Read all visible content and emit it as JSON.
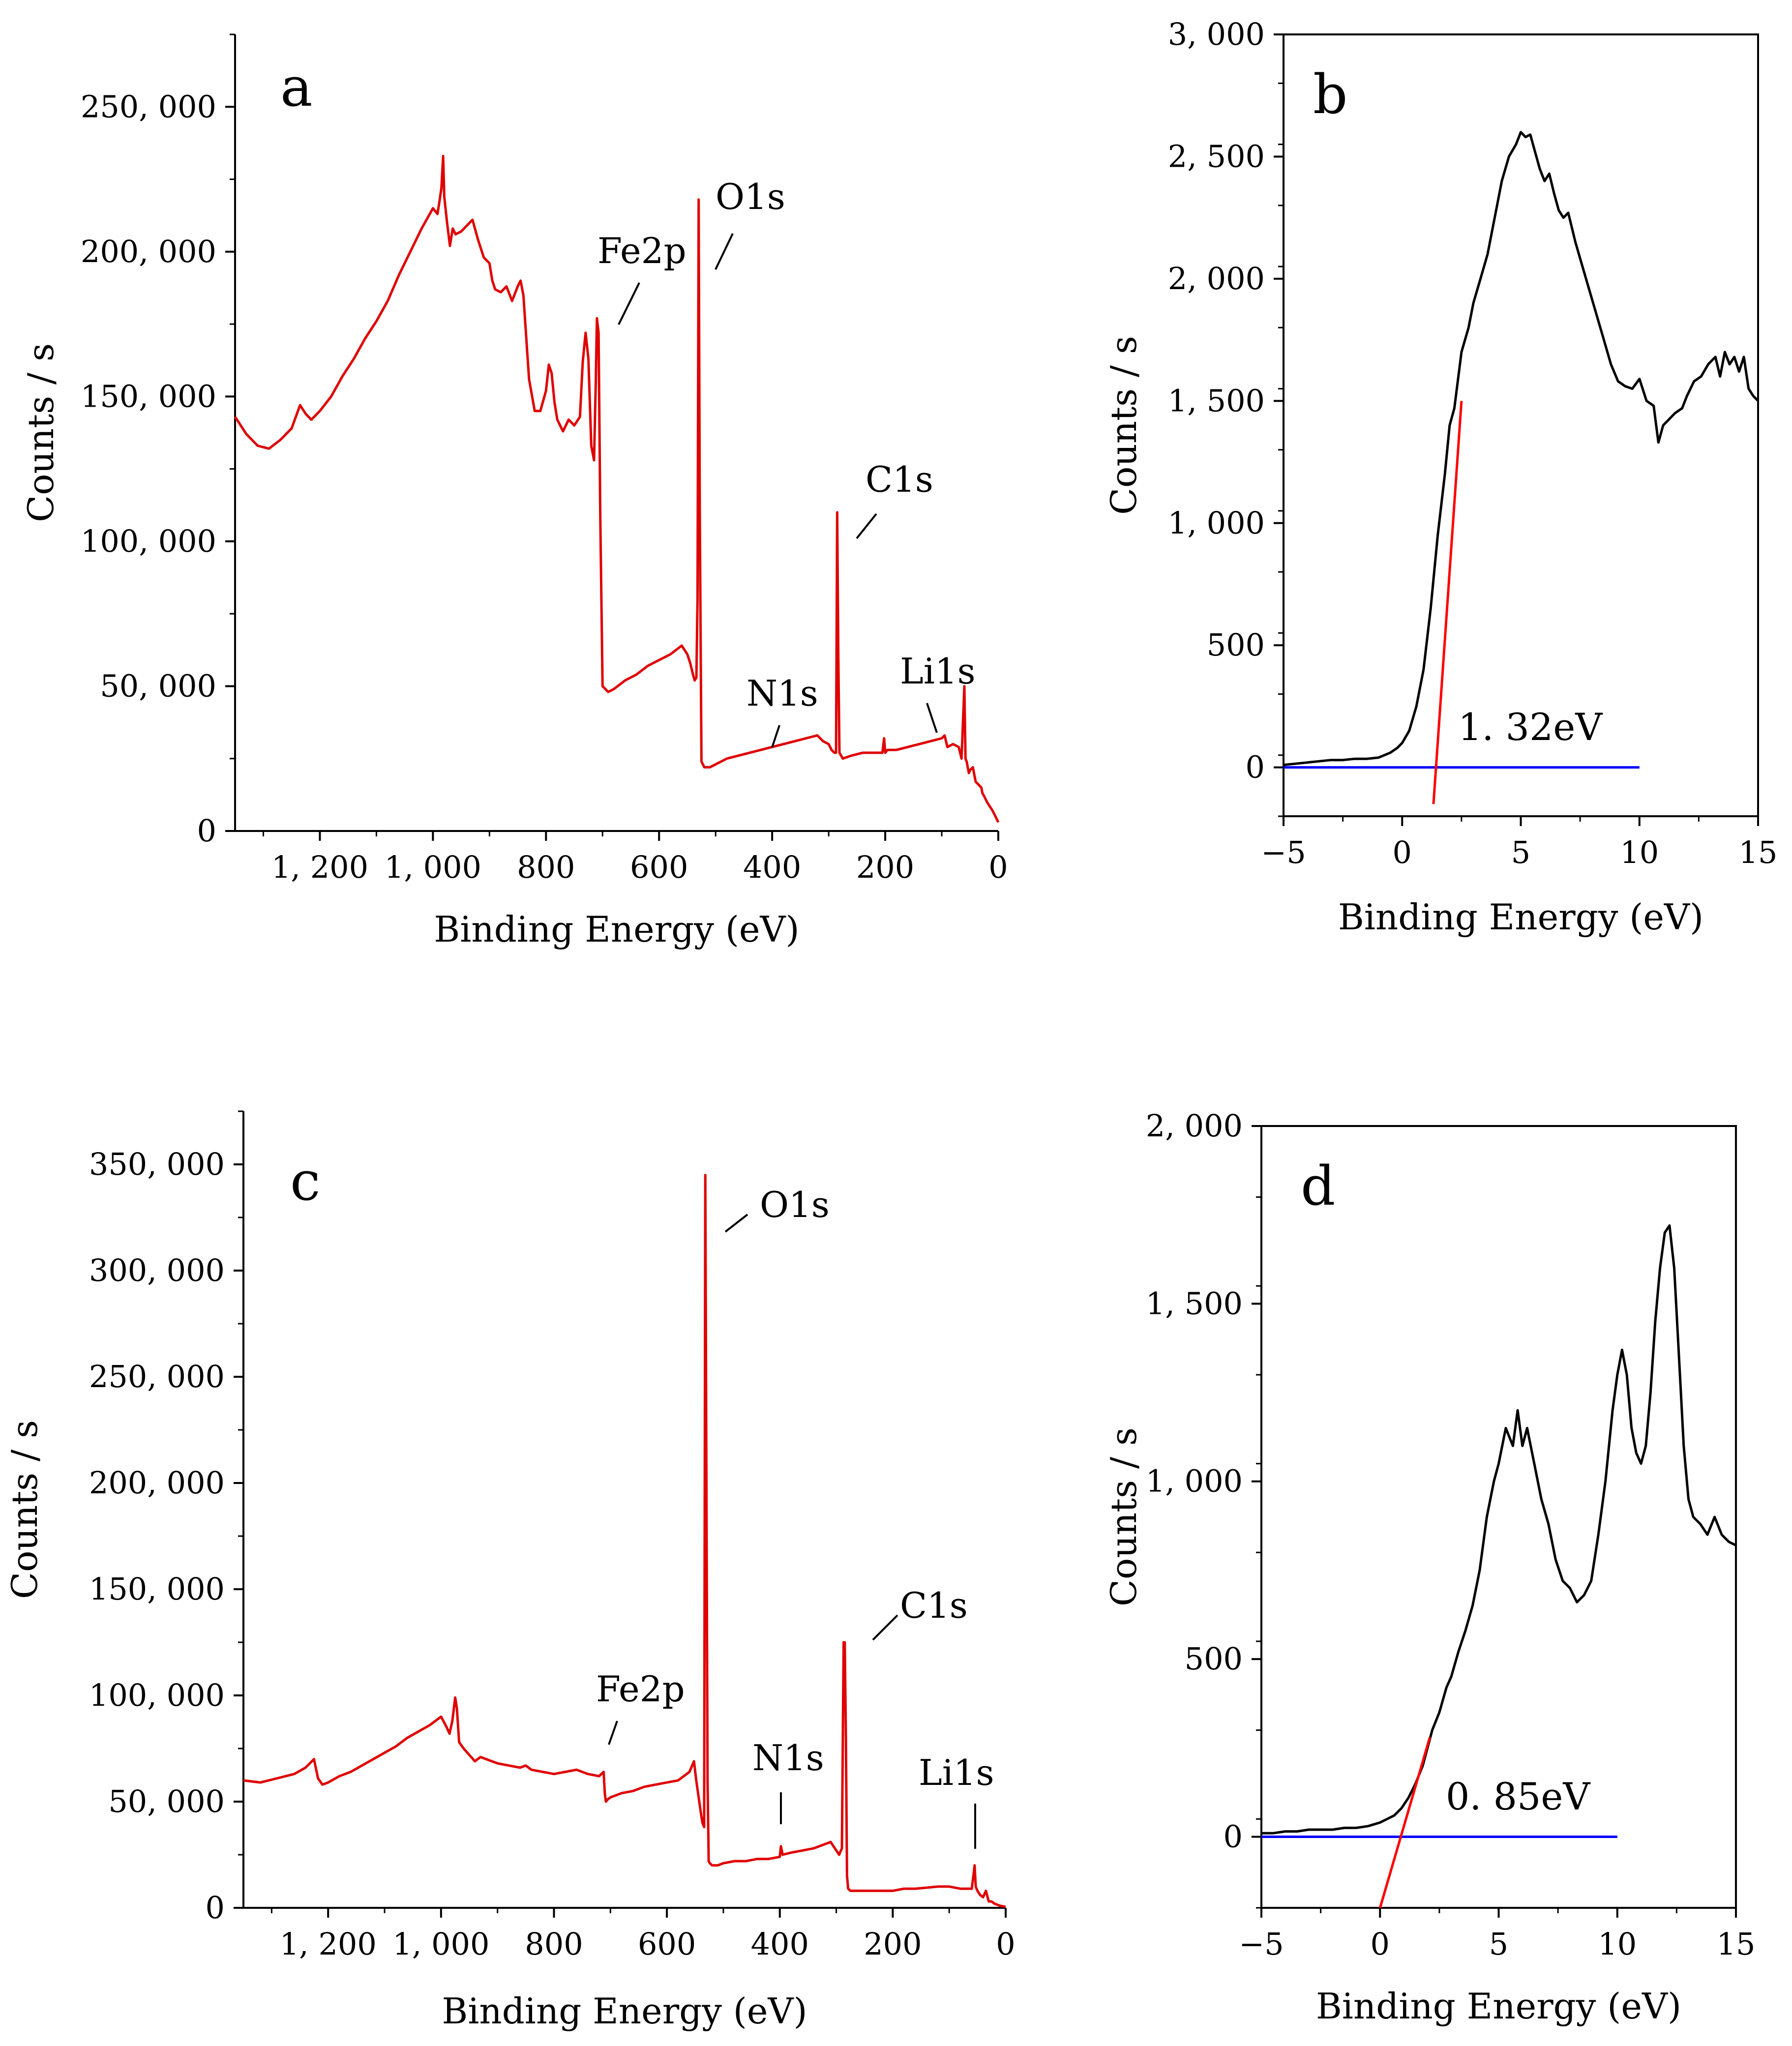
{
  "figure": {
    "panels": [
      "a",
      "b",
      "c",
      "d"
    ]
  },
  "chart_data": [
    {
      "id": "a",
      "type": "line",
      "panel_letter": "a",
      "xlabel": "Binding Energy (eV)",
      "ylabel": "Counts / s",
      "xlim": [
        1350,
        0
      ],
      "ylim": [
        0,
        275000
      ],
      "x_ticks": [
        1200,
        1000,
        800,
        600,
        400,
        200,
        0
      ],
      "x_tick_labels": [
        "1, 200",
        "1, 000",
        "800",
        "600",
        "400",
        "200",
        "0"
      ],
      "y_ticks": [
        0,
        50000,
        100000,
        150000,
        200000,
        250000
      ],
      "y_tick_labels": [
        "0",
        "50, 000",
        "100, 000",
        "150, 000",
        "200, 000",
        "250, 000"
      ],
      "series_color": "#e00000",
      "series": [
        {
          "name": "survey",
          "x": [
            1350,
            1330,
            1310,
            1290,
            1270,
            1250,
            1235,
            1225,
            1215,
            1200,
            1180,
            1160,
            1140,
            1120,
            1100,
            1080,
            1060,
            1040,
            1020,
            1000,
            992,
            988,
            985,
            982,
            980,
            975,
            970,
            965,
            960,
            950,
            940,
            930,
            920,
            910,
            900,
            895,
            890,
            880,
            870,
            860,
            850,
            845,
            840,
            830,
            820,
            810,
            800,
            795,
            790,
            785,
            780,
            770,
            760,
            750,
            740,
            735,
            730,
            725,
            722,
            720,
            715,
            712,
            710,
            707,
            704,
            700,
            690,
            680,
            660,
            640,
            620,
            600,
            580,
            560,
            550,
            545,
            540,
            537,
            534,
            532,
            530,
            528,
            525,
            520,
            510,
            500,
            480,
            460,
            440,
            420,
            400,
            380,
            360,
            340,
            320,
            310,
            300,
            295,
            290,
            287,
            285,
            283,
            281,
            278,
            275,
            260,
            240,
            220,
            205,
            202,
            200,
            196,
            180,
            160,
            140,
            120,
            100,
            95,
            90,
            80,
            70,
            65,
            60,
            58,
            56,
            55,
            54,
            52,
            50,
            45,
            40,
            35,
            30,
            28,
            25,
            20,
            10,
            5,
            0
          ],
          "y": [
            143000,
            137000,
            133000,
            132000,
            135000,
            139000,
            147000,
            144000,
            142000,
            145000,
            150000,
            157000,
            163000,
            170000,
            176000,
            183000,
            192000,
            200000,
            208000,
            215000,
            213000,
            218000,
            222000,
            233000,
            219000,
            210000,
            202000,
            208000,
            206000,
            207000,
            209000,
            211000,
            204000,
            198000,
            196000,
            190000,
            187000,
            186000,
            188000,
            183000,
            188000,
            190000,
            185000,
            156000,
            145000,
            145000,
            152000,
            161000,
            158000,
            148000,
            142000,
            138000,
            142000,
            140000,
            143000,
            162000,
            172000,
            163000,
            145000,
            133000,
            128000,
            155000,
            177000,
            172000,
            108000,
            50000,
            48000,
            49000,
            52000,
            54000,
            57000,
            59000,
            61000,
            64000,
            61000,
            58000,
            54000,
            52000,
            53000,
            80000,
            218000,
            110000,
            24000,
            22000,
            22000,
            23000,
            25000,
            26000,
            27000,
            28000,
            29000,
            30000,
            31000,
            32000,
            33000,
            31000,
            30000,
            28000,
            27000,
            27000,
            110000,
            60000,
            27000,
            26000,
            25000,
            26000,
            27000,
            27000,
            27000,
            32000,
            27000,
            28000,
            28000,
            29000,
            30000,
            31000,
            32000,
            33000,
            29000,
            30000,
            29000,
            25000,
            50000,
            25000,
            24000,
            23000,
            22000,
            20000,
            21000,
            22000,
            17000,
            16000,
            15000,
            13000,
            12000,
            10000,
            7000,
            5000,
            3000
          ],
          "annotations": [
            {
              "text": "Fe2p",
              "x": 720,
              "y": 195000
            },
            {
              "text": "O1s",
              "x": 500,
              "y": 206000
            },
            {
              "text": "C1s",
              "x": 195,
              "y": 110000
            },
            {
              "text": "N1s",
              "x": 380,
              "y": 42000
            },
            {
              "text": "Li1s",
              "x": 40,
              "y": 52000
            }
          ]
        }
      ]
    },
    {
      "id": "b",
      "type": "line",
      "panel_letter": "b",
      "xlabel": "Binding Energy (eV)",
      "ylabel": "Counts / s",
      "xlim": [
        -5,
        15
      ],
      "ylim": [
        -200,
        3000
      ],
      "x_ticks": [
        -5,
        0,
        5,
        10,
        15
      ],
      "x_tick_labels": [
        "−5",
        "0",
        "5",
        "10",
        "15"
      ],
      "y_ticks": [
        0,
        500,
        1000,
        1500,
        2000,
        2500,
        3000
      ],
      "y_tick_labels": [
        "0",
        "500",
        "1, 000",
        "1, 500",
        "2, 000",
        "2, 500",
        "3, 000"
      ],
      "series": [
        {
          "name": "valence band",
          "color": "#000000",
          "x": [
            -5,
            -4.5,
            -4,
            -3.5,
            -3,
            -2.5,
            -2,
            -1.5,
            -1,
            -0.5,
            -0.2,
            0,
            0.3,
            0.6,
            0.9,
            1.2,
            1.5,
            1.8,
            2.0,
            2.2,
            2.5,
            2.8,
            3.0,
            3.3,
            3.6,
            3.9,
            4.2,
            4.5,
            4.8,
            5.0,
            5.2,
            5.4,
            5.6,
            5.8,
            6.0,
            6.2,
            6.4,
            6.6,
            6.8,
            7.0,
            7.3,
            7.6,
            7.9,
            8.2,
            8.5,
            8.8,
            9.1,
            9.4,
            9.7,
            10.0,
            10.3,
            10.6,
            10.8,
            11.0,
            11.2,
            11.5,
            11.8,
            12.0,
            12.3,
            12.6,
            12.9,
            13.2,
            13.4,
            13.6,
            13.8,
            14.0,
            14.2,
            14.4,
            14.6,
            14.8,
            15
          ],
          "y": [
            10,
            15,
            20,
            25,
            30,
            30,
            35,
            35,
            40,
            60,
            80,
            100,
            150,
            250,
            400,
            650,
            950,
            1200,
            1400,
            1470,
            1700,
            1800,
            1900,
            2000,
            2100,
            2250,
            2400,
            2500,
            2550,
            2600,
            2580,
            2590,
            2520,
            2450,
            2400,
            2430,
            2350,
            2280,
            2250,
            2270,
            2150,
            2050,
            1950,
            1850,
            1750,
            1650,
            1580,
            1560,
            1550,
            1590,
            1500,
            1480,
            1330,
            1400,
            1420,
            1450,
            1470,
            1520,
            1580,
            1600,
            1650,
            1680,
            1600,
            1700,
            1650,
            1680,
            1620,
            1680,
            1550,
            1520,
            1500
          ]
        },
        {
          "name": "baseline",
          "color": "#0000ff",
          "x": [
            -5,
            10
          ],
          "y": [
            0,
            0
          ]
        },
        {
          "name": "leading-edge fit",
          "color": "#ff0000",
          "x": [
            1.32,
            2.5
          ],
          "y": [
            -150,
            1500
          ]
        }
      ],
      "band_gap_label": "1. 32eV",
      "band_gap_value": 1.32
    },
    {
      "id": "c",
      "type": "line",
      "panel_letter": "c",
      "xlabel": "Binding Energy (eV)",
      "ylabel": "Counts / s",
      "xlim": [
        1350,
        0
      ],
      "ylim": [
        0,
        375000
      ],
      "x_ticks": [
        1200,
        1000,
        800,
        600,
        400,
        200,
        0
      ],
      "x_tick_labels": [
        "1, 200",
        "1, 000",
        "800",
        "600",
        "400",
        "200",
        "0"
      ],
      "y_ticks": [
        0,
        50000,
        100000,
        150000,
        200000,
        250000,
        300000,
        350000
      ],
      "y_tick_labels": [
        "0",
        "50, 000",
        "100, 000",
        "150, 000",
        "200, 000",
        "250, 000",
        "300, 000",
        "350, 000"
      ],
      "series_color": "#e00000",
      "series": [
        {
          "name": "survey",
          "x": [
            1350,
            1320,
            1290,
            1260,
            1240,
            1225,
            1218,
            1210,
            1200,
            1180,
            1160,
            1140,
            1120,
            1100,
            1080,
            1060,
            1040,
            1020,
            1000,
            990,
            985,
            980,
            975,
            972,
            968,
            960,
            950,
            940,
            930,
            920,
            900,
            880,
            860,
            850,
            840,
            820,
            800,
            780,
            760,
            740,
            720,
            712,
            710,
            708,
            705,
            700,
            680,
            660,
            640,
            620,
            600,
            580,
            560,
            552,
            548,
            540,
            537,
            534,
            532,
            530,
            528,
            526,
            524,
            520,
            510,
            500,
            480,
            460,
            440,
            420,
            400,
            398,
            395,
            380,
            360,
            340,
            320,
            310,
            300,
            295,
            290,
            287,
            285,
            283,
            281,
            279,
            275,
            260,
            240,
            220,
            200,
            180,
            160,
            140,
            120,
            100,
            80,
            60,
            55,
            53,
            50,
            45,
            40,
            35,
            30,
            25,
            20,
            10,
            0
          ],
          "y": [
            60000,
            59000,
            61000,
            63000,
            66000,
            70000,
            61000,
            58000,
            59000,
            62000,
            64000,
            67000,
            70000,
            73000,
            76000,
            80000,
            83000,
            86000,
            90000,
            85000,
            82000,
            88000,
            99000,
            94000,
            78000,
            75000,
            72000,
            69000,
            71000,
            70000,
            68000,
            67000,
            66000,
            67000,
            65000,
            64000,
            63000,
            64000,
            65000,
            63000,
            62000,
            64000,
            54000,
            50000,
            51000,
            52000,
            54000,
            55000,
            57000,
            58000,
            59000,
            60000,
            64000,
            69000,
            60000,
            45000,
            40000,
            38000,
            345000,
            200000,
            60000,
            22000,
            21000,
            20000,
            20000,
            21000,
            22000,
            22000,
            23000,
            23000,
            24000,
            29000,
            25000,
            26000,
            27000,
            28000,
            30000,
            31000,
            27000,
            25000,
            28000,
            125000,
            125000,
            80000,
            15000,
            9000,
            8000,
            8000,
            8000,
            8000,
            8000,
            9000,
            9000,
            9500,
            10000,
            10000,
            9000,
            9000,
            20000,
            10000,
            8000,
            6000,
            5000,
            8000,
            3000,
            3000,
            2000,
            1000,
            500
          ]
        }
      ],
      "annotations": [
        {
          "text": "O1s",
          "x": 510,
          "y": 324000
        },
        {
          "text": "C1s",
          "x": 170,
          "y": 136000
        },
        {
          "text": "Fe2p",
          "x": 690,
          "y": 86000
        },
        {
          "text": "N1s",
          "x": 400,
          "y": 62000
        },
        {
          "text": "Li1s",
          "x": 55,
          "y": 55000
        }
      ]
    },
    {
      "id": "d",
      "type": "line",
      "panel_letter": "d",
      "xlabel": "Binding Energy (eV)",
      "ylabel": "Counts / s",
      "xlim": [
        -5,
        15
      ],
      "ylim": [
        -200,
        2000
      ],
      "x_ticks": [
        -5,
        0,
        5,
        10,
        15
      ],
      "x_tick_labels": [
        "−5",
        "0",
        "5",
        "10",
        "15"
      ],
      "y_ticks": [
        0,
        500,
        1000,
        1500,
        2000
      ],
      "y_tick_labels": [
        "0",
        "500",
        "1, 000",
        "1, 500",
        "2, 000"
      ],
      "series": [
        {
          "name": "valence band",
          "color": "#000000",
          "x": [
            -5,
            -4.5,
            -4,
            -3.5,
            -3,
            -2.5,
            -2,
            -1.5,
            -1,
            -0.5,
            0,
            0.3,
            0.6,
            0.9,
            1.2,
            1.5,
            1.8,
            2.0,
            2.2,
            2.5,
            2.8,
            3.0,
            3.3,
            3.6,
            3.9,
            4.2,
            4.5,
            4.8,
            5.0,
            5.3,
            5.6,
            5.8,
            6.0,
            6.2,
            6.5,
            6.8,
            7.1,
            7.4,
            7.7,
            8.0,
            8.3,
            8.6,
            8.9,
            9.2,
            9.5,
            9.8,
            10.0,
            10.2,
            10.4,
            10.6,
            10.8,
            11.0,
            11.2,
            11.4,
            11.6,
            11.8,
            12.0,
            12.2,
            12.4,
            12.6,
            12.8,
            13.0,
            13.2,
            13.5,
            13.8,
            14.1,
            14.4,
            14.7,
            15
          ],
          "y": [
            10,
            10,
            15,
            15,
            20,
            20,
            20,
            25,
            25,
            30,
            40,
            50,
            60,
            80,
            110,
            150,
            200,
            250,
            300,
            350,
            420,
            450,
            520,
            580,
            650,
            750,
            900,
            1000,
            1050,
            1150,
            1100,
            1200,
            1100,
            1150,
            1050,
            950,
            880,
            780,
            720,
            700,
            660,
            680,
            720,
            850,
            1000,
            1200,
            1300,
            1370,
            1300,
            1150,
            1080,
            1050,
            1100,
            1250,
            1450,
            1600,
            1700,
            1720,
            1600,
            1350,
            1100,
            950,
            900,
            880,
            850,
            900,
            850,
            830,
            820
          ]
        },
        {
          "name": "baseline",
          "color": "#0000ff",
          "x": [
            -5,
            10
          ],
          "y": [
            0,
            0
          ]
        },
        {
          "name": "leading-edge fit",
          "color": "#ff0000",
          "x": [
            0,
            2.1
          ],
          "y": [
            -200,
            280
          ]
        }
      ],
      "band_gap_label": "0. 85eV",
      "band_gap_value": 0.85
    }
  ]
}
